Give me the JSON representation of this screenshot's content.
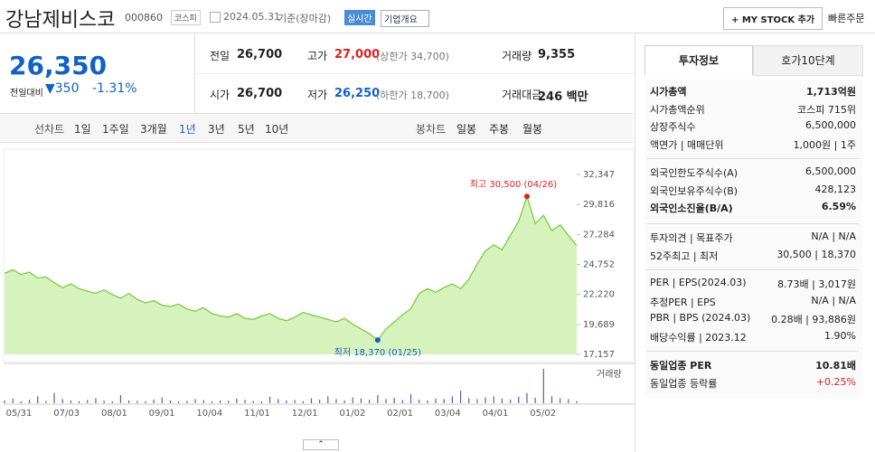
{
  "header": {
    "title": "강남제비스코",
    "code": "000860",
    "market": "코스피",
    "date": "2024.05.31",
    "date_note": "기준(장마감)",
    "realtime": "실시간",
    "company_menu": "기업개요",
    "my_stock": "+ MY STOCK 추가",
    "quick_order": "빠른주문"
  },
  "price": {
    "current": "26,350",
    "change_label": "전일대비",
    "change": "▼350",
    "change_rate": "-1.31%"
  },
  "summary": [
    [
      {
        "label": "전일",
        "value": "26,700"
      },
      {
        "label": "고가",
        "value": "27,000",
        "note": "(상한가 34,700)",
        "color": "#e01e1e"
      },
      {
        "label": "거래량",
        "value": "9,355"
      }
    ],
    [
      {
        "label": "시가",
        "value": "26,700"
      },
      {
        "label": "저가",
        "value": "26,250",
        "note": "(하한가 18,700)",
        "color": "#1261c4"
      },
      {
        "label": "거래대금",
        "value": "246 백만"
      }
    ]
  ],
  "tabs": {
    "line_label": "선차트",
    "line": [
      "1일",
      "1주일",
      "3개월",
      "1년",
      "3년",
      "5년",
      "10년"
    ],
    "selected": "1년",
    "candle_label": "봉차트",
    "candle": [
      "일봉",
      "주봉",
      "월봉"
    ]
  },
  "chart_data": {
    "type": "line",
    "color": "#7ccb45",
    "fill": "#d6f2bd",
    "values": [
      24000,
      24300,
      23900,
      24100,
      23600,
      23700,
      23200,
      22800,
      23100,
      22700,
      22500,
      22300,
      22600,
      22200,
      21900,
      22300,
      21800,
      21500,
      21700,
      21300,
      21200,
      21400,
      21000,
      20800,
      21100,
      20600,
      20400,
      20300,
      20600,
      20200,
      20100,
      20400,
      20600,
      20200,
      20000,
      20300,
      20700,
      20500,
      20300,
      20100,
      19900,
      20200,
      19700,
      19300,
      18900,
      18370,
      19300,
      19900,
      20500,
      21000,
      22300,
      22700,
      22400,
      22800,
      23100,
      22700,
      23500,
      24800,
      25900,
      26400,
      26000,
      27200,
      28400,
      30500,
      28200,
      28900,
      27600,
      28100,
      27200,
      26350
    ],
    "ylim": [
      17157,
      32347
    ],
    "yticks": [
      {
        "value": 32347,
        "label": "32,347"
      },
      {
        "value": 29816,
        "label": "29,816"
      },
      {
        "value": 27284,
        "label": "27,284"
      },
      {
        "value": 24752,
        "label": "24,752"
      },
      {
        "value": 22220,
        "label": "22,220"
      },
      {
        "value": 19689,
        "label": "19,689"
      },
      {
        "value": 17157,
        "label": "17,157"
      }
    ],
    "x_labels": [
      "05/31",
      "07/03",
      "08/01",
      "09/01",
      "10/04",
      "11/01",
      "12/01",
      "01/02",
      "02/01",
      "03/04",
      "04/01",
      "05/02"
    ],
    "annotations": [
      {
        "text": "최고 30,500 (04/26)",
        "color": "#e01e1e"
      },
      {
        "text": "최저 18,370 (01/25)",
        "color": "#1261c4"
      }
    ],
    "volume": {
      "label": "거래량",
      "color": "#5560b0",
      "values": [
        12000,
        20000,
        8000,
        15000,
        30000,
        10000,
        45000,
        18000,
        12000,
        9000,
        14000,
        22000,
        11000,
        8000,
        35000,
        12000,
        10000,
        9000,
        16000,
        25000,
        12000,
        8000,
        10000,
        18000,
        14000,
        9000,
        12000,
        11000,
        20000,
        15000,
        10000,
        8000,
        28000,
        18000,
        12000,
        14000,
        9000,
        22000,
        16000,
        30000,
        18000,
        12000,
        25000,
        20000,
        15000,
        35000,
        18000,
        24000,
        14000,
        40000,
        16000,
        12000,
        20000,
        18000,
        30000,
        55000,
        22000,
        18000,
        25000,
        30000,
        20000,
        16000,
        28000,
        45000,
        24000,
        150000,
        30000,
        22000,
        18000,
        9355
      ]
    }
  },
  "side": {
    "tabs": [
      "투자정보",
      "호가10단계"
    ],
    "sections": [
      [
        {
          "label": "시가총액",
          "value": "1,713억원",
          "bold": true
        },
        {
          "label": "시가총액순위",
          "value": "코스피 715위"
        },
        {
          "label": "상장주식수",
          "value": "6,500,000"
        },
        {
          "label": "액면가 | 매매단위",
          "value": "1,000원 | 1주"
        }
      ],
      [
        {
          "label": "외국인한도주식수(A)",
          "value": "6,500,000"
        },
        {
          "label": "외국인보유주식수(B)",
          "value": "428,123"
        },
        {
          "label": "외국인소진율(B/A)",
          "value": "6.59%",
          "bold": true
        }
      ],
      [
        {
          "label": "투자의견 | 목표주가",
          "value": "N/A | N/A"
        },
        {
          "label": "52주최고 | 최저",
          "value": "30,500 | 18,370"
        }
      ],
      [
        {
          "label": "PER | EPS(2024.03)",
          "value": "8.73배 | 3,017원"
        },
        {
          "label": "추정PER | EPS",
          "value": "N/A | N/A"
        },
        {
          "label": "PBR | BPS (2024.03)",
          "value": "0.28배 | 93,886원"
        },
        {
          "label": "배당수익률 | 2023.12",
          "value": "1.90%"
        }
      ],
      [
        {
          "label": "동일업종 PER",
          "value": "10.81배",
          "bold": true
        },
        {
          "label": "동일업종 등락률",
          "value": "+0.25%",
          "color": "#e01e1e"
        }
      ]
    ]
  }
}
